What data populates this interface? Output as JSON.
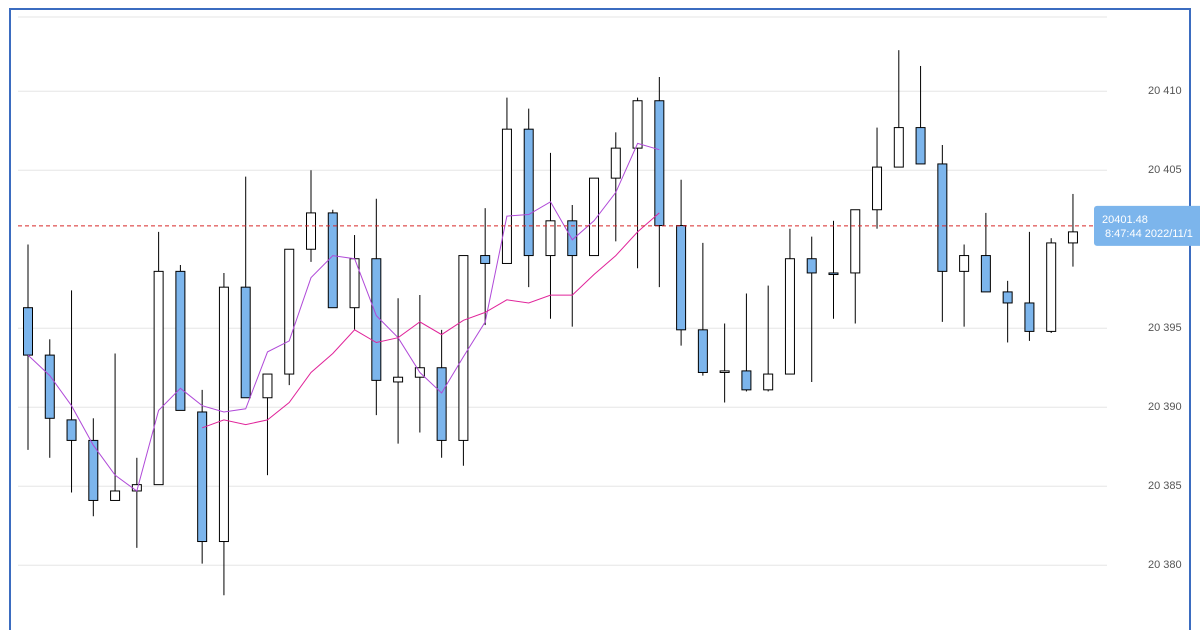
{
  "chart_data": {
    "type": "candlestick",
    "ylim": [
      20375.9,
      20414.7
    ],
    "yticks": [
      {
        "value": 20380,
        "label": "20 380"
      },
      {
        "value": 20385,
        "label": "20 385"
      },
      {
        "value": 20390,
        "label": "20 390"
      },
      {
        "value": 20395,
        "label": "20 395"
      },
      {
        "value": 20405,
        "label": "20 405"
      },
      {
        "value": 20410,
        "label": "20 410"
      }
    ],
    "grid": true,
    "up_color": "#ffffff",
    "down_color": "#7cb5ec",
    "open": [
      20396.3,
      20393.3,
      20389.2,
      20387.9,
      20384.1,
      20384.7,
      20385.1,
      20398.6,
      20389.7,
      20381.5,
      20397.6,
      20390.6,
      20392.1,
      20400.0,
      20402.3,
      20396.3,
      20399.4,
      20391.6,
      20391.9,
      20392.5,
      20387.9,
      20399.6,
      20399.1,
      20407.6,
      20399.6,
      20401.8,
      20399.6,
      20404.5,
      20406.4,
      20409.4,
      20401.5,
      20394.9,
      20392.2,
      20392.3,
      20391.1,
      20392.1,
      20399.4,
      20398.5,
      20398.5,
      20402.5,
      20405.2,
      20407.7,
      20405.4,
      20398.6,
      20399.6,
      20397.3,
      20396.6,
      20394.8,
      20400.4
    ],
    "high": [
      20400.3,
      20394.3,
      20397.4,
      20389.3,
      20393.4,
      20386.8,
      20401.1,
      20399.0,
      20391.1,
      20398.5,
      20404.6,
      20392.1,
      20400.0,
      20405.0,
      20402.5,
      20400.9,
      20403.2,
      20396.9,
      20397.1,
      20394.9,
      20399.6,
      20402.6,
      20409.6,
      20408.9,
      20406.1,
      20402.8,
      20404.5,
      20407.4,
      20409.6,
      20410.9,
      20404.4,
      20400.4,
      20395.3,
      20397.2,
      20397.7,
      20401.3,
      20400.8,
      20401.8,
      20402.5,
      20407.7,
      20412.6,
      20411.6,
      20406.6,
      20400.3,
      20402.3,
      20398.0,
      20401.1,
      20400.7,
      20403.5
    ],
    "low": [
      20387.3,
      20386.8,
      20384.6,
      20383.1,
      20384.1,
      20381.1,
      20385.1,
      20389.8,
      20380.1,
      20378.1,
      20390.6,
      20385.7,
      20391.4,
      20399.2,
      20396.3,
      20394.9,
      20389.5,
      20387.7,
      20388.4,
      20386.8,
      20386.3,
      20395.2,
      20399.1,
      20397.6,
      20395.6,
      20395.1,
      20399.6,
      20400.5,
      20398.8,
      20397.6,
      20393.9,
      20392.0,
      20390.3,
      20391.0,
      20391.0,
      20392.1,
      20391.6,
      20395.6,
      20395.3,
      20401.3,
      20405.2,
      20405.4,
      20395.4,
      20395.1,
      20397.3,
      20394.1,
      20394.2,
      20394.7,
      20398.9
    ],
    "close": [
      20393.3,
      20389.3,
      20387.9,
      20384.1,
      20384.7,
      20385.1,
      20398.6,
      20389.8,
      20381.5,
      20397.6,
      20390.6,
      20392.1,
      20400.0,
      20402.3,
      20396.3,
      20399.4,
      20391.7,
      20391.9,
      20392.5,
      20387.9,
      20399.6,
      20399.1,
      20407.6,
      20399.6,
      20401.8,
      20399.6,
      20404.5,
      20406.4,
      20409.4,
      20401.5,
      20394.9,
      20392.2,
      20392.3,
      20391.1,
      20392.1,
      20399.4,
      20398.5,
      20398.4,
      20402.5,
      20405.2,
      20407.7,
      20405.4,
      20398.6,
      20399.6,
      20397.3,
      20396.6,
      20394.8,
      20400.4,
      20401.1
    ],
    "overlays": [
      {
        "color": "#b04ad8",
        "values": [
          20393.3,
          20392.0,
          20390.1,
          20387.6,
          20385.7,
          20384.7,
          20389.8,
          20391.2,
          20390.1,
          20389.7,
          20389.9,
          20393.5,
          20394.2,
          20398.2,
          20399.6,
          20399.4,
          20395.8,
          20394.4,
          20392.2,
          20390.9,
          20393.2,
          20395.4,
          20402.1,
          20402.2,
          20403.0,
          20400.6,
          20401.8,
          20403.6,
          20406.7,
          20406.3,
          null,
          null,
          null,
          null,
          null,
          null,
          null,
          null,
          null,
          null,
          null,
          null,
          null,
          null,
          null,
          null,
          null,
          null,
          null
        ]
      },
      {
        "color": "#e0249a",
        "values": [
          null,
          null,
          null,
          null,
          null,
          null,
          null,
          null,
          20388.7,
          20389.2,
          20388.9,
          20389.2,
          20390.3,
          20392.2,
          20393.4,
          20394.9,
          20394.1,
          20394.4,
          20395.4,
          20394.6,
          20395.5,
          20396.0,
          20396.8,
          20396.6,
          20397.1,
          20397.1,
          20398.4,
          20399.6,
          20401.1,
          20402.3,
          null,
          null,
          null,
          null,
          null,
          null,
          null,
          null,
          null,
          null,
          null,
          null,
          null,
          null,
          null,
          null,
          null,
          null,
          null
        ]
      }
    ],
    "last_price": {
      "value": 20401.48,
      "time": "8:47:44 2022/11/1",
      "color": "#d62728",
      "label_color": "#7cb5ec"
    }
  }
}
